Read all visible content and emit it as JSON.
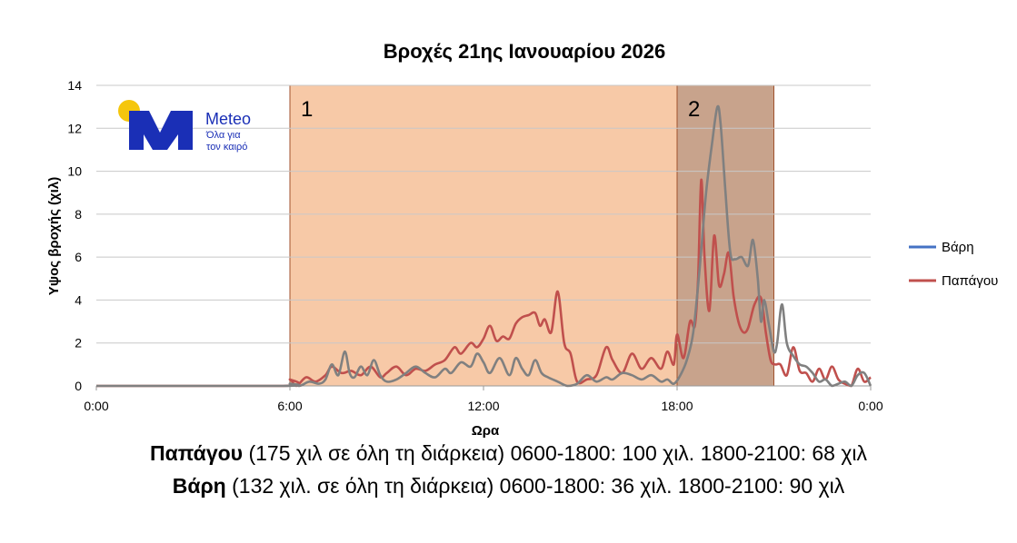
{
  "chart_data": {
    "type": "line",
    "title": "Βροχές 21ης Ιανουαρίου 2026",
    "xlabel": "Ωρα",
    "ylabel": "Υψος βροχής (χιλ)",
    "ylim": [
      0,
      14
    ],
    "xlim": [
      "0:00",
      "24:00"
    ],
    "y_ticks": [
      "0",
      "2",
      "4",
      "6",
      "8",
      "10",
      "12",
      "14"
    ],
    "x_ticks": [
      "0:00",
      "6:00",
      "12:00",
      "18:00",
      "0:00"
    ],
    "grid": true,
    "legend": "right",
    "periods": [
      {
        "label": "1",
        "start": "6:00",
        "end": "18:00",
        "color": "#f7c9a7"
      },
      {
        "label": "2",
        "start": "18:00",
        "end": "21:00",
        "color": "#c8a38c"
      }
    ],
    "series": [
      {
        "name": "Βάρη",
        "legend_color": "#4472c4",
        "line_color": "#808080",
        "x_hours": [
          0,
          5.8,
          6.0,
          6.3,
          6.6,
          6.9,
          7.1,
          7.3,
          7.5,
          7.7,
          7.85,
          8.0,
          8.2,
          8.4,
          8.6,
          8.8,
          9.0,
          9.3,
          9.6,
          9.9,
          10.2,
          10.5,
          10.8,
          11.0,
          11.3,
          11.6,
          11.8,
          12.0,
          12.2,
          12.5,
          12.8,
          13.0,
          13.2,
          13.4,
          13.6,
          13.8,
          14.0,
          14.3,
          14.6,
          14.9,
          15.2,
          15.5,
          15.8,
          16.0,
          16.3,
          16.6,
          16.9,
          17.2,
          17.5,
          17.7,
          17.9,
          18.1,
          18.3,
          18.5,
          18.7,
          18.9,
          19.1,
          19.25,
          19.35,
          19.5,
          19.65,
          19.8,
          20.0,
          20.2,
          20.35,
          20.5,
          20.6,
          20.7,
          20.85,
          21.0,
          21.1,
          21.25,
          21.4,
          21.6,
          21.8,
          22.0,
          22.2,
          22.4,
          22.6,
          22.8,
          23.0,
          23.2,
          23.4,
          23.6,
          23.8,
          24.0
        ],
        "values": [
          0,
          0,
          0.1,
          0.0,
          0.2,
          0.1,
          0.3,
          1.0,
          0.5,
          1.6,
          0.6,
          0.4,
          0.9,
          0.5,
          1.2,
          0.5,
          0.2,
          0.3,
          0.6,
          0.9,
          0.6,
          0.4,
          0.8,
          0.6,
          1.1,
          0.9,
          1.5,
          1.1,
          0.6,
          1.3,
          0.5,
          1.3,
          0.8,
          0.5,
          1.2,
          0.6,
          0.4,
          0.2,
          0.0,
          0.1,
          0.5,
          0.2,
          0.4,
          0.3,
          0.6,
          0.5,
          0.3,
          0.5,
          0.2,
          0.3,
          0.1,
          0.5,
          1.2,
          2.5,
          5.5,
          9.0,
          11.5,
          13.0,
          12.2,
          9.0,
          6.2,
          5.9,
          6.0,
          5.6,
          6.8,
          5.0,
          3.0,
          4.0,
          2.8,
          1.6,
          2.0,
          3.8,
          2.0,
          1.4,
          1.0,
          0.9,
          0.6,
          0.2,
          0.3,
          0.0,
          0.1,
          0.2,
          0.0,
          0.5,
          0.6,
          0.0
        ]
      },
      {
        "name": "Παπάγου",
        "legend_color": "#c0504d",
        "line_color": "#c0504d",
        "x_hours": [
          0,
          5.8,
          6.0,
          6.2,
          6.5,
          6.8,
          7.1,
          7.3,
          7.6,
          7.9,
          8.2,
          8.5,
          8.8,
          9.0,
          9.3,
          9.6,
          9.9,
          10.2,
          10.5,
          10.8,
          11.1,
          11.3,
          11.6,
          11.8,
          12.0,
          12.2,
          12.4,
          12.6,
          12.8,
          13.0,
          13.2,
          13.4,
          13.6,
          13.75,
          13.9,
          14.1,
          14.3,
          14.5,
          14.7,
          14.9,
          15.2,
          15.5,
          15.8,
          16.0,
          16.3,
          16.6,
          16.9,
          17.2,
          17.5,
          17.7,
          17.9,
          18.0,
          18.2,
          18.4,
          18.55,
          18.65,
          18.75,
          18.85,
          19.0,
          19.15,
          19.3,
          19.45,
          19.6,
          19.75,
          19.9,
          20.05,
          20.2,
          20.4,
          20.6,
          20.75,
          20.9,
          21.05,
          21.2,
          21.4,
          21.6,
          21.8,
          22.0,
          22.2,
          22.4,
          22.6,
          22.8,
          23.0,
          23.2,
          23.4,
          23.6,
          23.8,
          24.0
        ],
        "values": [
          0,
          0,
          0.3,
          0.0,
          0.4,
          0.2,
          0.5,
          0.9,
          0.6,
          0.7,
          0.5,
          0.9,
          0.4,
          0.6,
          0.9,
          0.5,
          0.8,
          0.7,
          1.0,
          1.2,
          1.8,
          1.5,
          2.0,
          1.8,
          2.2,
          2.8,
          2.1,
          2.3,
          2.2,
          2.9,
          3.2,
          3.3,
          3.4,
          2.8,
          3.1,
          2.5,
          4.4,
          2.0,
          1.5,
          0.2,
          0.3,
          0.5,
          1.8,
          1.2,
          0.6,
          1.5,
          0.8,
          1.3,
          0.8,
          1.6,
          1.0,
          2.4,
          1.3,
          3.0,
          2.8,
          5.0,
          9.6,
          6.0,
          3.5,
          7.0,
          4.7,
          5.2,
          6.2,
          4.2,
          3.0,
          2.5,
          2.7,
          3.8,
          4.1,
          2.5,
          1.2,
          1.0,
          1.0,
          0.5,
          1.8,
          0.7,
          0.6,
          0.2,
          0.8,
          0.3,
          0.9,
          0.3,
          0.1,
          0.0,
          0.8,
          0.2,
          0.4
        ]
      }
    ]
  },
  "logo": {
    "brand": "Meteo",
    "tagline_line1": "Όλα για",
    "tagline_line2": "τον καιρό"
  },
  "summary": {
    "line1": {
      "station": "Παπάγου",
      "details": " (175 χιλ σε όλη τη διάρκεια) 0600-1800:  100 χιλ. 1800-2100:  68 χιλ"
    },
    "line2": {
      "station": "Βάρη",
      "details": " (132 χιλ. σε όλη τη διάρκεια) 0600-1800:  36 χιλ. 1800-2100:  90 χιλ"
    }
  }
}
